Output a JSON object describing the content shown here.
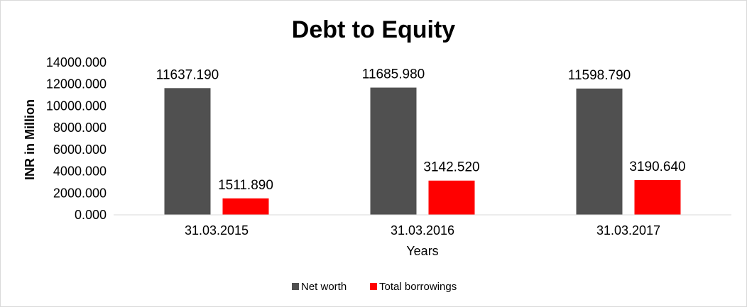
{
  "chart_data": {
    "type": "bar",
    "title": "Debt to Equity",
    "xlabel": "Years",
    "ylabel": "INR in Million",
    "categories": [
      "31.03.2015",
      "31.03.2016",
      "31.03.2017"
    ],
    "series": [
      {
        "name": "Net worth",
        "color": "#505050",
        "values": [
          11637.19,
          11685.98,
          11598.79
        ],
        "labels": [
          "11637.190",
          "11685.980",
          "11598.790"
        ]
      },
      {
        "name": "Total borrowings",
        "color": "#ff0000",
        "values": [
          1511.89,
          3142.52,
          3190.64
        ],
        "labels": [
          "1511.890",
          "3142.520",
          "3190.640"
        ]
      }
    ],
    "ylim": [
      0,
      14000
    ],
    "yticks": [
      "0.000",
      "2000.000",
      "4000.000",
      "6000.000",
      "8000.000",
      "10000.000",
      "12000.000",
      "14000.000"
    ],
    "grid": false,
    "legend": "bottom"
  }
}
